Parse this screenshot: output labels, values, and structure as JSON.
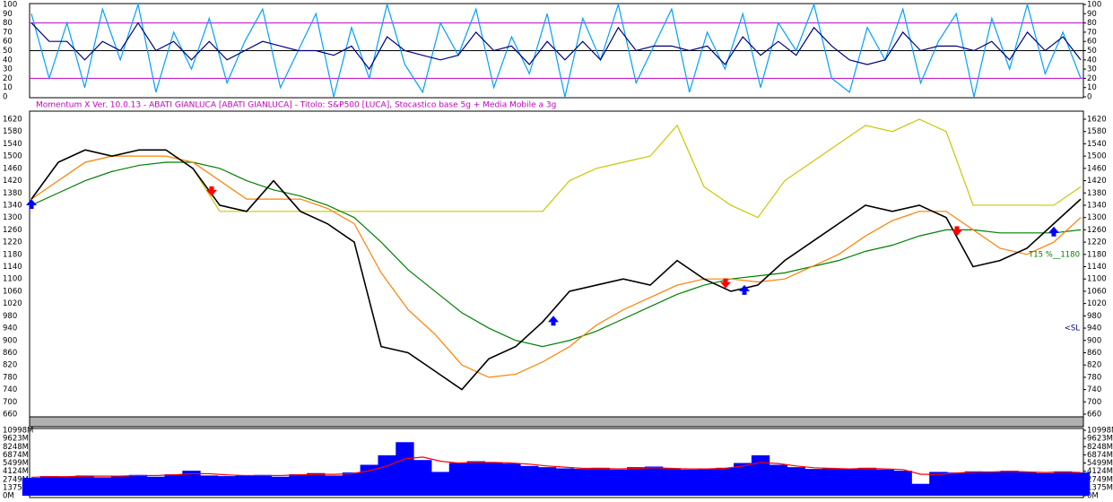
{
  "header": {
    "text": "Momentum X  Ver. 10.0.13  -  ABATI GIANLUCA  [ABATI GIANLUCA] - Titolo: S&P500  [LUCA],    Stocastico base 5g + Media Mobile a 3g"
  },
  "chart_data": [
    {
      "type": "line",
      "ylim": [
        0,
        100
      ],
      "yticks": [
        0,
        10,
        20,
        30,
        40,
        50,
        60,
        70,
        80,
        90,
        100
      ],
      "hlines": [
        {
          "value": 80,
          "color": "#c000c0"
        },
        {
          "value": 50,
          "color": "#000000"
        },
        {
          "value": 20,
          "color": "#c000c0"
        }
      ],
      "series": [
        {
          "color": "#00a0ff",
          "values": [
            90,
            20,
            80,
            10,
            95,
            40,
            100,
            5,
            70,
            30,
            85,
            15,
            60,
            95,
            10,
            50,
            90,
            0,
            75,
            20,
            100,
            35,
            5,
            80,
            45,
            95,
            10,
            65,
            25,
            90,
            0,
            85,
            40,
            100,
            15,
            55,
            95,
            5,
            70,
            30,
            90,
            10,
            80,
            50,
            100,
            20,
            5,
            75,
            40,
            95,
            15,
            60,
            90,
            0,
            85,
            30,
            100,
            25,
            70,
            20
          ]
        },
        {
          "color": "#000080",
          "values": [
            80,
            60,
            60,
            40,
            60,
            50,
            80,
            50,
            60,
            40,
            60,
            40,
            50,
            60,
            55,
            50,
            50,
            45,
            55,
            30,
            65,
            50,
            45,
            40,
            45,
            70,
            50,
            55,
            35,
            60,
            40,
            60,
            40,
            75,
            50,
            55,
            55,
            50,
            55,
            35,
            65,
            45,
            60,
            45,
            75,
            55,
            40,
            35,
            40,
            70,
            50,
            55,
            55,
            50,
            60,
            40,
            70,
            50,
            65,
            40
          ]
        }
      ]
    },
    {
      "type": "line",
      "ylim": [
        660,
        1620
      ],
      "yticks": [
        660,
        700,
        740,
        780,
        820,
        860,
        900,
        940,
        980,
        1020,
        1060,
        1100,
        1140,
        1180,
        1220,
        1260,
        1300,
        1340,
        1380,
        1420,
        1460,
        1500,
        1540,
        1580,
        1620
      ],
      "series": [
        {
          "color": "#c8c800",
          "values": [
            1360,
            1480,
            1520,
            1500,
            1520,
            1520,
            1460,
            1320,
            1320,
            1320,
            1320,
            1320,
            1320,
            1320,
            1320,
            1320,
            1320,
            1320,
            1320,
            1320,
            1420,
            1460,
            1480,
            1500,
            1600,
            1400,
            1340,
            1300,
            1420,
            1480,
            1540,
            1600,
            1580,
            1620,
            1580,
            1340,
            1340,
            1340,
            1340,
            1400
          ]
        },
        {
          "color": "#008000",
          "values": [
            1340,
            1380,
            1420,
            1450,
            1470,
            1480,
            1480,
            1460,
            1420,
            1390,
            1370,
            1340,
            1300,
            1220,
            1130,
            1060,
            990,
            940,
            900,
            880,
            900,
            930,
            970,
            1010,
            1050,
            1080,
            1100,
            1110,
            1120,
            1140,
            1160,
            1190,
            1210,
            1240,
            1260,
            1260,
            1250,
            1250,
            1250,
            1260
          ]
        },
        {
          "color": "#ff8000",
          "values": [
            1360,
            1420,
            1480,
            1500,
            1500,
            1500,
            1480,
            1420,
            1360,
            1360,
            1360,
            1330,
            1280,
            1120,
            1000,
            920,
            820,
            780,
            790,
            830,
            880,
            950,
            1000,
            1040,
            1080,
            1100,
            1100,
            1090,
            1100,
            1140,
            1180,
            1240,
            1290,
            1320,
            1320,
            1260,
            1200,
            1180,
            1220,
            1300
          ]
        },
        {
          "color": "#000000",
          "values": [
            1360,
            1480,
            1520,
            1500,
            1520,
            1520,
            1460,
            1340,
            1320,
            1420,
            1320,
            1280,
            1220,
            880,
            860,
            800,
            740,
            840,
            880,
            960,
            1060,
            1080,
            1100,
            1080,
            1160,
            1100,
            1060,
            1080,
            1160,
            1220,
            1280,
            1340,
            1320,
            1340,
            1300,
            1140,
            1160,
            1200,
            1280,
            1360
          ]
        }
      ],
      "signals": [
        {
          "direction": "up",
          "color": "#0000ff",
          "x": [
            0,
            19.4,
            26.5,
            38
          ],
          "values": [
            1340,
            960,
            1060,
            1250
          ]
        },
        {
          "direction": "down",
          "color": "#ff0000",
          "x": [
            6.7,
            25.8,
            34.4
          ],
          "values": [
            1390,
            1090,
            1260
          ]
        }
      ],
      "annotations": [
        {
          "text": "T15 %__1180",
          "value": 1180,
          "color": "#008000"
        },
        {
          "text": "<SL",
          "value": 940,
          "color": "#000080"
        }
      ]
    },
    {
      "type": "bar",
      "ylim": [
        0,
        10998
      ],
      "yticks": [
        {
          "value": 0,
          "label": "0M"
        },
        {
          "value": 1375,
          "label": "1375M"
        },
        {
          "value": 2749,
          "label": "2749M"
        },
        {
          "value": 4124,
          "label": "4124M"
        },
        {
          "value": 5499,
          "label": "5499M"
        },
        {
          "value": 6874,
          "label": "6874M"
        },
        {
          "value": 8248,
          "label": "8248M"
        },
        {
          "value": 9623,
          "label": "9623M"
        },
        {
          "value": 10998,
          "label": "10998M"
        }
      ],
      "series": [
        {
          "type": "bar",
          "color": "#0000ff",
          "values": [
            3000,
            3300,
            3200,
            3400,
            3100,
            3300,
            3500,
            3200,
            3600,
            4200,
            3400,
            3300,
            3400,
            3500,
            3200,
            3600,
            3800,
            3400,
            3900,
            5200,
            6800,
            9000,
            6000,
            4000,
            5500,
            5800,
            5600,
            5400,
            5000,
            4800,
            4600,
            4500,
            4700,
            4400,
            4800,
            4900,
            4600,
            4400,
            4500,
            4700,
            5500,
            6800,
            5200,
            4800,
            4500,
            4600,
            4500,
            4700,
            4400,
            4200,
            2000,
            4000,
            3900,
            4100,
            4000,
            4200,
            4000,
            3800,
            4100,
            3900
          ]
        },
        {
          "type": "line",
          "color": "#ff0000",
          "values": [
            3100,
            3200,
            3200,
            3300,
            3300,
            3300,
            3400,
            3400,
            3500,
            3700,
            3700,
            3500,
            3400,
            3400,
            3400,
            3500,
            3600,
            3600,
            3700,
            4200,
            5000,
            6200,
            6500,
            5800,
            5500,
            5600,
            5600,
            5500,
            5300,
            5000,
            4800,
            4600,
            4600,
            4500,
            4600,
            4700,
            4600,
            4500,
            4500,
            4600,
            5000,
            5600,
            5400,
            5000,
            4700,
            4600,
            4500,
            4600,
            4500,
            4400,
            3600,
            3600,
            3800,
            4000,
            4000,
            4100,
            4000,
            3900,
            4000,
            3900
          ]
        }
      ]
    }
  ]
}
